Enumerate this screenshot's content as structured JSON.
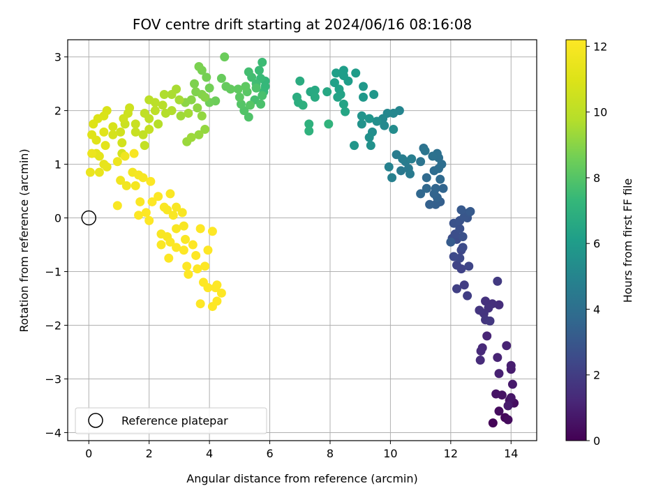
{
  "chart_data": {
    "type": "scatter",
    "title": "FOV centre drift starting at 2024/06/16 08:16:08",
    "xlabel": "Angular distance from reference (arcmin)",
    "ylabel": "Rotation from reference (arcmin)",
    "xlim": [
      -0.7,
      14.85
    ],
    "ylim": [
      -4.15,
      3.32
    ],
    "xticks": [
      0,
      2,
      4,
      6,
      8,
      10,
      12,
      14
    ],
    "yticks": [
      -4,
      -3,
      -2,
      -1,
      0,
      1,
      2,
      3
    ],
    "xtick_labels": [
      "0",
      "2",
      "4",
      "6",
      "8",
      "10",
      "12",
      "14"
    ],
    "ytick_labels": [
      "−4",
      "−3",
      "−2",
      "−1",
      "0",
      "1",
      "2",
      "3"
    ],
    "grid": true,
    "colormap": "viridis",
    "colorbar": {
      "label": "Hours from first FF file",
      "range": [
        0,
        12.2
      ],
      "ticks": [
        0,
        2,
        4,
        6,
        8,
        10,
        12
      ],
      "tick_labels": [
        "0",
        "2",
        "4",
        "6",
        "8",
        "10",
        "12"
      ]
    },
    "legend": {
      "position": "lower-left",
      "entries": [
        "Reference platepar"
      ]
    },
    "reference_point": {
      "x": 0,
      "y": 0
    },
    "points": [
      [
        13.4,
        -3.82,
        0.1
      ],
      [
        13.8,
        -3.72,
        0.2
      ],
      [
        13.9,
        -3.76,
        0.3
      ],
      [
        13.6,
        -3.6,
        0.35
      ],
      [
        14.1,
        -3.45,
        0.4
      ],
      [
        13.95,
        -3.4,
        0.5
      ],
      [
        13.7,
        -3.3,
        0.55
      ],
      [
        13.5,
        -3.28,
        0.6
      ],
      [
        14.0,
        -3.35,
        0.65
      ],
      [
        14.05,
        -3.1,
        0.75
      ],
      [
        13.9,
        -3.5,
        0.8
      ],
      [
        14.0,
        -2.82,
        0.85
      ],
      [
        14.0,
        -2.75,
        0.9
      ],
      [
        13.6,
        -2.9,
        1.0
      ],
      [
        13.85,
        -2.38,
        1.05
      ],
      [
        13.55,
        -2.6,
        1.1
      ],
      [
        13.2,
        -2.2,
        1.15
      ],
      [
        13.05,
        -2.42,
        1.25
      ],
      [
        13.0,
        -2.48,
        1.3
      ],
      [
        12.98,
        -2.65,
        1.35
      ],
      [
        13.6,
        -1.62,
        1.45
      ],
      [
        13.38,
        -1.6,
        1.5
      ],
      [
        13.15,
        -1.55,
        1.55
      ],
      [
        13.25,
        -1.68,
        1.6
      ],
      [
        13.1,
        -1.78,
        1.65
      ],
      [
        12.95,
        -1.72,
        1.7
      ],
      [
        13.15,
        -1.9,
        1.75
      ],
      [
        13.3,
        -1.92,
        1.8
      ],
      [
        13.55,
        -1.18,
        1.9
      ],
      [
        12.45,
        -1.25,
        2.0
      ],
      [
        12.55,
        -1.45,
        2.05
      ],
      [
        12.2,
        -1.32,
        2.1
      ],
      [
        12.35,
        -0.95,
        2.2
      ],
      [
        12.2,
        -0.88,
        2.25
      ],
      [
        12.6,
        -0.9,
        2.3
      ],
      [
        12.35,
        -0.6,
        2.35
      ],
      [
        12.3,
        -0.75,
        2.4
      ],
      [
        12.1,
        -0.72,
        2.45
      ],
      [
        12.4,
        -0.55,
        2.5
      ],
      [
        12.2,
        -0.4,
        2.55
      ],
      [
        12.05,
        -0.38,
        2.6
      ],
      [
        12.15,
        -0.3,
        2.65
      ],
      [
        12.3,
        -0.2,
        2.7
      ],
      [
        12.4,
        -0.35,
        2.75
      ],
      [
        12.1,
        -0.1,
        2.8
      ],
      [
        12.3,
        -0.05,
        2.85
      ],
      [
        12.55,
        0.0,
        2.9
      ],
      [
        12.45,
        0.02,
        2.95
      ],
      [
        12.6,
        0.1,
        3.0
      ],
      [
        12.35,
        0.15,
        3.05
      ],
      [
        12.65,
        0.12,
        3.1
      ],
      [
        12.0,
        -0.45,
        3.15
      ],
      [
        11.65,
        0.3,
        3.3
      ],
      [
        11.5,
        0.25,
        3.35
      ],
      [
        11.3,
        0.25,
        3.4
      ],
      [
        11.55,
        0.38,
        3.45
      ],
      [
        11.45,
        0.45,
        3.5
      ],
      [
        11.75,
        0.55,
        3.55
      ],
      [
        11.5,
        0.55,
        3.6
      ],
      [
        11.0,
        0.45,
        3.65
      ],
      [
        11.2,
        0.55,
        3.7
      ],
      [
        11.65,
        0.72,
        3.75
      ],
      [
        11.2,
        0.75,
        3.8
      ],
      [
        11.45,
        0.88,
        3.85
      ],
      [
        11.6,
        0.92,
        3.9
      ],
      [
        11.7,
        1.0,
        3.95
      ],
      [
        11.6,
        1.12,
        4.0
      ],
      [
        11.55,
        1.2,
        4.05
      ],
      [
        11.4,
        1.15,
        4.1
      ],
      [
        11.1,
        1.3,
        4.15
      ],
      [
        11.0,
        1.05,
        4.2
      ],
      [
        11.15,
        1.25,
        4.25
      ],
      [
        10.35,
        0.88,
        4.4
      ],
      [
        10.6,
        0.92,
        4.45
      ],
      [
        10.65,
        0.82,
        4.5
      ],
      [
        10.5,
        1.05,
        4.55
      ],
      [
        10.2,
        1.18,
        4.6
      ],
      [
        10.4,
        1.1,
        4.65
      ],
      [
        10.7,
        1.1,
        4.7
      ],
      [
        10.05,
        0.75,
        4.8
      ],
      [
        9.95,
        0.95,
        4.85
      ],
      [
        10.3,
        2.0,
        5.0
      ],
      [
        10.1,
        1.95,
        5.05
      ],
      [
        9.9,
        1.95,
        5.1
      ],
      [
        9.75,
        1.85,
        5.15
      ],
      [
        9.8,
        1.72,
        5.2
      ],
      [
        10.1,
        1.65,
        5.3
      ],
      [
        9.4,
        1.6,
        5.4
      ],
      [
        9.55,
        1.8,
        5.45
      ],
      [
        9.3,
        1.5,
        5.5
      ],
      [
        9.35,
        1.35,
        5.55
      ],
      [
        9.05,
        1.75,
        5.6
      ],
      [
        9.05,
        1.9,
        5.65
      ],
      [
        9.3,
        1.85,
        5.7
      ],
      [
        8.8,
        1.35,
        5.75
      ],
      [
        9.45,
        2.3,
        5.8
      ],
      [
        9.1,
        2.25,
        5.85
      ],
      [
        9.1,
        2.45,
        5.9
      ],
      [
        8.85,
        2.7,
        6.0
      ],
      [
        8.6,
        2.55,
        6.05
      ],
      [
        8.45,
        2.75,
        6.1
      ],
      [
        8.2,
        2.7,
        6.15
      ],
      [
        8.15,
        2.52,
        6.2
      ],
      [
        8.3,
        2.4,
        6.25
      ],
      [
        8.35,
        2.3,
        6.3
      ],
      [
        8.25,
        2.25,
        6.35
      ],
      [
        8.45,
        2.12,
        6.4
      ],
      [
        8.5,
        1.98,
        6.45
      ],
      [
        7.9,
        2.35,
        6.55
      ],
      [
        7.35,
        2.35,
        6.6
      ],
      [
        7.5,
        2.38,
        6.65
      ],
      [
        7.5,
        2.25,
        6.7
      ],
      [
        7.0,
        2.55,
        6.75
      ],
      [
        6.9,
        2.25,
        6.8
      ],
      [
        6.95,
        2.15,
        6.85
      ],
      [
        7.1,
        2.1,
        6.95
      ],
      [
        7.3,
        1.75,
        7.0
      ],
      [
        7.3,
        1.62,
        7.05
      ],
      [
        7.95,
        1.75,
        7.1
      ],
      [
        8.45,
        2.65,
        6.12
      ],
      [
        5.85,
        2.55,
        7.25
      ],
      [
        5.85,
        2.45,
        7.3
      ],
      [
        5.8,
        2.35,
        7.35
      ],
      [
        5.7,
        2.6,
        7.4
      ],
      [
        5.65,
        2.75,
        7.45
      ],
      [
        5.75,
        2.9,
        7.5
      ],
      [
        5.55,
        2.5,
        7.55
      ],
      [
        5.4,
        2.62,
        7.6
      ],
      [
        5.3,
        2.72,
        7.65
      ],
      [
        5.5,
        2.2,
        7.7
      ],
      [
        5.75,
        2.28,
        7.75
      ],
      [
        5.7,
        2.12,
        7.8
      ],
      [
        5.55,
        2.42,
        7.85
      ],
      [
        5.3,
        1.88,
        7.9
      ],
      [
        5.15,
        2.0,
        7.95
      ],
      [
        5.05,
        2.12,
        8.0
      ],
      [
        5.35,
        2.1,
        8.05
      ],
      [
        5.25,
        2.35,
        8.1
      ],
      [
        5.0,
        2.25,
        8.15
      ],
      [
        5.2,
        2.45,
        8.2
      ],
      [
        4.95,
        2.4,
        8.25
      ],
      [
        4.7,
        2.4,
        8.3
      ],
      [
        4.55,
        2.45,
        8.35
      ],
      [
        4.4,
        2.6,
        8.4
      ],
      [
        4.5,
        3.0,
        8.45
      ],
      [
        4.2,
        2.18,
        8.5
      ],
      [
        4.0,
        2.15,
        8.55
      ],
      [
        4.0,
        2.42,
        8.6
      ],
      [
        3.9,
        2.62,
        8.65
      ],
      [
        3.75,
        2.75,
        8.7
      ],
      [
        3.65,
        2.82,
        8.75
      ],
      [
        3.5,
        2.5,
        8.8
      ],
      [
        3.55,
        2.35,
        8.85
      ],
      [
        3.75,
        2.3,
        8.9
      ],
      [
        3.85,
        2.25,
        8.95
      ],
      [
        3.4,
        2.2,
        9.0
      ],
      [
        3.2,
        2.15,
        9.05
      ],
      [
        3.6,
        2.05,
        9.1
      ],
      [
        3.75,
        1.9,
        9.15
      ],
      [
        3.85,
        1.65,
        9.2
      ],
      [
        3.65,
        1.55,
        9.25
      ],
      [
        3.25,
        1.42,
        9.3
      ],
      [
        3.4,
        1.5,
        9.35
      ],
      [
        3.05,
        1.9,
        9.4
      ],
      [
        3.3,
        1.95,
        9.45
      ],
      [
        3.0,
        2.2,
        9.5
      ],
      [
        2.9,
        2.4,
        9.55
      ],
      [
        2.75,
        2.3,
        9.6
      ],
      [
        2.5,
        2.3,
        9.65
      ],
      [
        2.75,
        2.0,
        9.7
      ],
      [
        2.55,
        1.95,
        9.75
      ],
      [
        2.3,
        1.75,
        9.8
      ],
      [
        2.45,
        2.1,
        9.85
      ],
      [
        2.2,
        2.15,
        9.9
      ],
      [
        2.0,
        2.2,
        9.95
      ],
      [
        2.2,
        2.0,
        10.0
      ],
      [
        2.0,
        1.85,
        10.05
      ],
      [
        1.85,
        1.95,
        10.1
      ],
      [
        1.8,
        1.55,
        10.15
      ],
      [
        1.85,
        1.35,
        10.2
      ],
      [
        2.0,
        1.65,
        10.25
      ],
      [
        1.55,
        1.6,
        10.3
      ],
      [
        1.55,
        1.75,
        10.35
      ],
      [
        1.2,
        1.75,
        10.4
      ],
      [
        1.3,
        1.95,
        10.45
      ],
      [
        1.35,
        2.05,
        10.5
      ],
      [
        1.15,
        1.85,
        10.55
      ],
      [
        1.05,
        1.6,
        10.6
      ],
      [
        1.1,
        1.4,
        10.65
      ],
      [
        1.1,
        1.2,
        10.7
      ],
      [
        0.8,
        1.55,
        10.75
      ],
      [
        0.8,
        1.7,
        10.8
      ],
      [
        0.6,
        2.0,
        10.85
      ],
      [
        0.5,
        1.9,
        10.9
      ],
      [
        0.3,
        1.85,
        10.95
      ],
      [
        0.15,
        1.75,
        11.0
      ],
      [
        0.1,
        1.55,
        11.05
      ],
      [
        0.25,
        1.45,
        11.1
      ],
      [
        0.5,
        1.6,
        11.15
      ],
      [
        0.55,
        1.35,
        11.2
      ],
      [
        0.35,
        1.15,
        11.25
      ],
      [
        0.25,
        1.2,
        11.3
      ],
      [
        0.5,
        1.0,
        11.35
      ],
      [
        0.6,
        0.95,
        11.4
      ],
      [
        0.35,
        0.85,
        11.45
      ],
      [
        0.05,
        0.85,
        11.5
      ],
      [
        0.1,
        1.2,
        11.55
      ],
      [
        0.95,
        1.05,
        11.6
      ],
      [
        1.2,
        1.15,
        11.65
      ],
      [
        1.05,
        0.7,
        11.7
      ],
      [
        1.25,
        0.6,
        11.75
      ],
      [
        1.45,
        0.85,
        11.8
      ],
      [
        1.55,
        0.6,
        11.85
      ],
      [
        1.65,
        0.8,
        11.9
      ],
      [
        1.8,
        0.75,
        11.95
      ],
      [
        1.5,
        1.2,
        12.0
      ],
      [
        0.95,
        0.23,
        12.05
      ],
      [
        1.7,
        0.3,
        12.1
      ],
      [
        1.65,
        0.05,
        12.15
      ],
      [
        1.9,
        0.1,
        12.2
      ],
      [
        2.0,
        -0.05,
        12.2
      ],
      [
        2.1,
        0.3,
        12.2
      ],
      [
        2.05,
        0.68,
        12.15
      ],
      [
        2.3,
        0.4,
        12.15
      ],
      [
        2.5,
        0.2,
        12.1
      ],
      [
        2.7,
        0.45,
        12.1
      ],
      [
        2.6,
        0.15,
        12.05
      ],
      [
        2.8,
        0.05,
        12.05
      ],
      [
        2.9,
        0.2,
        12.0
      ],
      [
        3.1,
        0.1,
        12.0
      ],
      [
        3.15,
        -0.15,
        12.0
      ],
      [
        2.4,
        -0.3,
        12.0
      ],
      [
        2.6,
        -0.35,
        12.0
      ],
      [
        2.9,
        -0.2,
        12.0
      ],
      [
        3.2,
        -0.4,
        12.1
      ],
      [
        2.7,
        -0.45,
        12.1
      ],
      [
        2.4,
        -0.5,
        12.1
      ],
      [
        2.65,
        -0.75,
        12.15
      ],
      [
        2.9,
        -0.55,
        12.15
      ],
      [
        3.15,
        -0.6,
        12.2
      ],
      [
        3.45,
        -0.5,
        12.2
      ],
      [
        3.55,
        -0.7,
        12.2
      ],
      [
        3.25,
        -0.9,
        12.2
      ],
      [
        3.3,
        -1.05,
        12.2
      ],
      [
        3.6,
        -0.95,
        12.2
      ],
      [
        3.85,
        -0.9,
        12.2
      ],
      [
        3.95,
        -0.6,
        12.2
      ],
      [
        3.7,
        -0.2,
        12.2
      ],
      [
        4.1,
        -0.25,
        12.2
      ],
      [
        3.8,
        -1.2,
        12.2
      ],
      [
        3.95,
        -1.3,
        12.2
      ],
      [
        4.2,
        -1.3,
        12.2
      ],
      [
        4.25,
        -1.25,
        12.2
      ],
      [
        4.4,
        -1.4,
        12.2
      ],
      [
        4.25,
        -1.55,
        12.2
      ],
      [
        4.1,
        -1.65,
        12.2
      ],
      [
        3.7,
        -1.6,
        12.2
      ]
    ]
  }
}
